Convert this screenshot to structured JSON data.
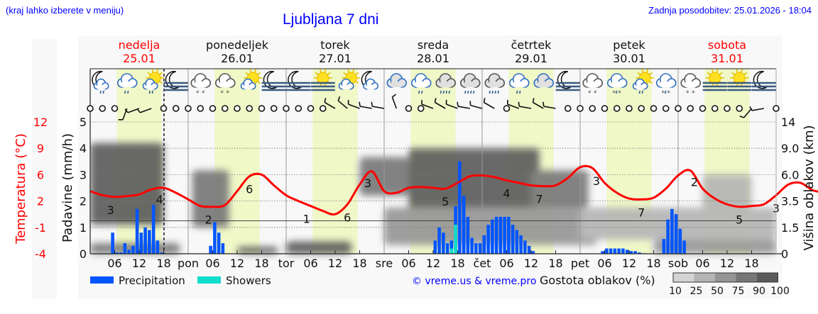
{
  "header": {
    "hint": "(kraj lahko izberete v meniju)",
    "title": "Ljubljana 7 dni",
    "updated": "Zadnja posodobitev: 25.01.2026 - 18:04"
  },
  "colors": {
    "temperature": "#ff0000",
    "precipitation": "#0055ff",
    "showers": "#11ddcc",
    "daylight": "#f0f8c8",
    "weekend_day": "#ff0000",
    "link": "#0000ff"
  },
  "chart_data": {
    "type": "meteogram",
    "days": [
      {
        "name": "nedelja",
        "date": "25.01",
        "abbr": "",
        "weekend": true
      },
      {
        "name": "ponedeljek",
        "date": "26.01",
        "abbr": "pon",
        "weekend": false
      },
      {
        "name": "torek",
        "date": "27.01",
        "abbr": "tor",
        "weekend": false
      },
      {
        "name": "sreda",
        "date": "28.01",
        "abbr": "sre",
        "weekend": false
      },
      {
        "name": "četrtek",
        "date": "29.01",
        "abbr": "čet",
        "weekend": false
      },
      {
        "name": "petek",
        "date": "30.01",
        "abbr": "pet",
        "weekend": false
      },
      {
        "name": "sobota",
        "date": "31.01",
        "abbr": "sob",
        "weekend": true
      }
    ],
    "hour_ticks": [
      "06",
      "12",
      "18"
    ],
    "daylight_hours": [
      6.5,
      17.5
    ],
    "now_hour": 18.07,
    "left_axis": {
      "label": "Padavine (mm/h)",
      "ticks": [
        "0",
        "1",
        "2",
        "3",
        "4",
        "5"
      ],
      "range": [
        0,
        5
      ]
    },
    "temp_axis": {
      "label": "Temperatura (°C)",
      "ticks": [
        "-4",
        "-1",
        "2",
        "6",
        "9",
        "12"
      ],
      "range": [
        -4,
        12
      ]
    },
    "right_axis": {
      "label": "Višina oblakov (km)",
      "ticks": [
        "0",
        "1.5",
        "3.5",
        "6.0",
        "9.0",
        "14"
      ]
    },
    "temperature_step_hours": 3,
    "temperature": [
      3.6,
      3.1,
      2.9,
      3.0,
      3.2,
      3.8,
      4.0,
      3.4,
      2.6,
      1.8,
      1.7,
      1.9,
      3.6,
      5.4,
      5.6,
      4.3,
      3.1,
      2.4,
      1.8,
      1.2,
      0.8,
      2.0,
      4.4,
      6.0,
      3.6,
      3.4,
      4.0,
      4.1,
      4.0,
      3.9,
      4.6,
      5.4,
      5.5,
      5.3,
      4.9,
      4.6,
      4.3,
      4.2,
      4.3,
      5.2,
      6.5,
      6.4,
      4.6,
      3.4,
      2.7,
      2.6,
      2.8,
      3.9,
      5.5,
      6.1,
      3.9,
      2.7,
      2.0,
      1.7,
      1.8,
      2.0,
      3.1,
      4.4,
      4.6,
      3.7,
      3.4,
      2.9
    ],
    "temperature_labels": [
      {
        "hour": 5,
        "text": "3"
      },
      {
        "hour": 17,
        "text": "4"
      },
      {
        "hour": 29,
        "text": "2"
      },
      {
        "hour": 39,
        "text": "6"
      },
      {
        "hour": 53,
        "text": "1"
      },
      {
        "hour": 63,
        "text": "6"
      },
      {
        "hour": 68,
        "text": "3"
      },
      {
        "hour": 87,
        "text": "5"
      },
      {
        "hour": 102,
        "text": "4"
      },
      {
        "hour": 110,
        "text": "7"
      },
      {
        "hour": 124,
        "text": "3"
      },
      {
        "hour": 135,
        "text": "7"
      },
      {
        "hour": 148,
        "text": "2"
      },
      {
        "hour": 159,
        "text": "5"
      },
      {
        "hour": 168,
        "text": "3"
      }
    ],
    "precipitation": {
      "5": 0.8,
      "6": 0.05,
      "7": 0.05,
      "8": 0.4,
      "9": 0.15,
      "10": 0.3,
      "11": 1.7,
      "12": 0.8,
      "13": 1.0,
      "14": 0.9,
      "15": 1.85,
      "16": 0.5,
      "17": 0.05,
      "29": 0.3,
      "30": 1.2,
      "31": 0.8,
      "32": 0.4,
      "84": 0.5,
      "85": 1.0,
      "86": 0.8,
      "87": 0.4,
      "88": 0.5,
      "89": 1.8,
      "90": 3.5,
      "91": 2.2,
      "92": 1.4,
      "93": 0.6,
      "94": 0.4,
      "95": 0.4,
      "96": 0.7,
      "97": 1.1,
      "98": 1.3,
      "99": 1.4,
      "100": 1.4,
      "101": 1.4,
      "102": 1.4,
      "103": 1.1,
      "104": 0.9,
      "105": 0.7,
      "106": 0.5,
      "107": 0.3,
      "108": 0.1,
      "125": 0.1,
      "126": 0.2,
      "127": 0.2,
      "128": 0.2,
      "129": 0.2,
      "130": 0.2,
      "131": 0.15,
      "132": 0.1,
      "133": 0.1,
      "134": 0.05,
      "135": 0.02,
      "140": 0.56,
      "141": 1.3,
      "142": 1.7,
      "143": 1.5,
      "144": 0.95,
      "145": 0.5
    },
    "showers": {
      "88": 0.2,
      "89": 1.1
    },
    "cloud_density": [
      {
        "h": [
          0,
          18
        ],
        "km": [
          1.7,
          10
        ],
        "pct": 90
      },
      {
        "h": [
          0,
          22
        ],
        "km": [
          0,
          0.6
        ],
        "pct": 75
      },
      {
        "h": [
          25,
          34
        ],
        "km": [
          1.5,
          6.5
        ],
        "pct": 75
      },
      {
        "h": [
          36,
          46
        ],
        "km": [
          0,
          0.4
        ],
        "pct": 90
      },
      {
        "h": [
          48,
          64
        ],
        "km": [
          0,
          0.7
        ],
        "pct": 90
      },
      {
        "h": [
          66,
          78
        ],
        "km": [
          4,
          8
        ],
        "pct": 75
      },
      {
        "h": [
          78,
          110
        ],
        "km": [
          2,
          9
        ],
        "pct": 90
      },
      {
        "h": [
          72,
          124
        ],
        "km": [
          0.5,
          3
        ],
        "pct": 50
      },
      {
        "h": [
          108,
          122
        ],
        "km": [
          3,
          6.5
        ],
        "pct": 75
      },
      {
        "h": [
          120,
          168
        ],
        "km": [
          0.8,
          3
        ],
        "pct": 25
      },
      {
        "h": [
          150,
          162
        ],
        "km": [
          2.5,
          6
        ],
        "pct": 25
      },
      {
        "h": [
          138,
          168
        ],
        "km": [
          0,
          0.8
        ],
        "pct": 50
      }
    ],
    "weather_icons": [
      "night-cloud-rain",
      "cloud-rain",
      "sun-cloud-rain",
      "night-fog",
      "cloud-snow",
      "cloud-snow",
      "sun-cloud",
      "night-fog",
      "night-fog",
      "sun-fog",
      "sun-cloud",
      "night-cloud",
      "cloud",
      "cloud-rain",
      "cloud-rain-heavy",
      "cloud-rain-heavy",
      "cloud-rain-heavy",
      "cloud-rain",
      "cloud",
      "night-fog",
      "cloud-snow",
      "cloud-sleet",
      "sun-cloud-rain",
      "cloud-sleet",
      "cloud-snow",
      "sun-fog",
      "sun-fog",
      "night-fog"
    ],
    "wind_step_hours": 3,
    "wind_dir_deg": [
      0,
      0,
      0,
      200,
      250,
      250,
      0,
      0,
      0,
      0,
      0,
      0,
      0,
      0,
      0,
      0,
      0,
      0,
      0,
      0,
      300,
      310,
      290,
      280,
      280,
      340,
      0,
      0,
      290,
      300,
      290,
      280,
      285,
      300,
      0,
      290,
      280,
      300,
      280,
      0,
      0,
      0,
      0,
      0,
      0,
      0,
      0,
      0,
      0,
      0,
      0,
      0,
      0,
      0,
      220,
      260,
      0
    ],
    "legend": {
      "precipitation": "Precipitation",
      "showers": "Showers"
    },
    "cloud_scale": {
      "label": "Gostota oblakov (%)",
      "levels": [
        "10",
        "25",
        "50",
        "75",
        "90",
        "100"
      ]
    },
    "copyright": "© vreme.us & vreme.pro"
  }
}
